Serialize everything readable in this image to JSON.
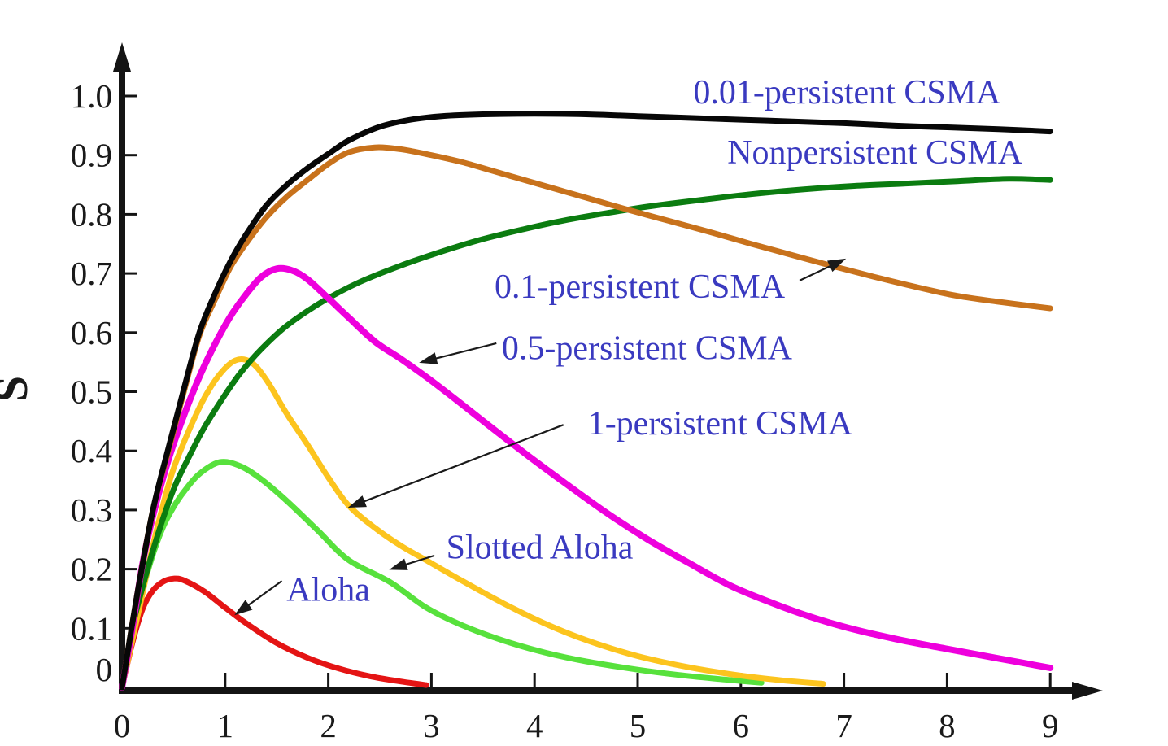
{
  "figure": {
    "ylabel": "S",
    "background": "#ffffff",
    "axis_color": "#141414",
    "tick_label_color": "#1a1a1a",
    "annotation_color": "#3a3ac0"
  },
  "chart_data": {
    "type": "line",
    "title": "",
    "xlabel": "",
    "ylabel": "S",
    "xlim": [
      0,
      9.5
    ],
    "ylim": [
      0,
      1.1
    ],
    "grid": "off",
    "legend": "inline-annotations",
    "x_ticks": [
      {
        "value": 0,
        "label": "0"
      },
      {
        "value": 1,
        "label": "1"
      },
      {
        "value": 2,
        "label": "2"
      },
      {
        "value": 3,
        "label": "3"
      },
      {
        "value": 4,
        "label": "4"
      },
      {
        "value": 5,
        "label": "5"
      },
      {
        "value": 6,
        "label": "6"
      },
      {
        "value": 7,
        "label": "7"
      },
      {
        "value": 8,
        "label": "8"
      },
      {
        "value": 9,
        "label": "9"
      }
    ],
    "y_ticks": [
      {
        "value": 0.0,
        "label": "0"
      },
      {
        "value": 0.1,
        "label": "0.1"
      },
      {
        "value": 0.2,
        "label": "0.2"
      },
      {
        "value": 0.3,
        "label": "0.3"
      },
      {
        "value": 0.4,
        "label": "0.4"
      },
      {
        "value": 0.5,
        "label": "0.5"
      },
      {
        "value": 0.6,
        "label": "0.6"
      },
      {
        "value": 0.7,
        "label": "0.7"
      },
      {
        "value": 0.8,
        "label": "0.8"
      },
      {
        "value": 0.9,
        "label": "0.9"
      },
      {
        "value": 1.0,
        "label": "1.0"
      }
    ],
    "series": [
      {
        "name": "Aloha",
        "slug": "aloha",
        "color": "#e41414",
        "width": 7,
        "points": [
          [
            0,
            0
          ],
          [
            0.1,
            0.075
          ],
          [
            0.2,
            0.133
          ],
          [
            0.3,
            0.164
          ],
          [
            0.4,
            0.179
          ],
          [
            0.5,
            0.184
          ],
          [
            0.6,
            0.181
          ],
          [
            0.8,
            0.162
          ],
          [
            1,
            0.135
          ],
          [
            1.2,
            0.109
          ],
          [
            1.5,
            0.075
          ],
          [
            1.8,
            0.05
          ],
          [
            2.1,
            0.032
          ],
          [
            2.4,
            0.019
          ],
          [
            2.7,
            0.01
          ],
          [
            2.95,
            0.004
          ]
        ]
      },
      {
        "name": "Slotted Aloha",
        "slug": "slotted-aloha",
        "color": "#57e13c",
        "width": 7,
        "points": [
          [
            0,
            0
          ],
          [
            0.1,
            0.09
          ],
          [
            0.2,
            0.165
          ],
          [
            0.3,
            0.225
          ],
          [
            0.4,
            0.272
          ],
          [
            0.5,
            0.305
          ],
          [
            0.6,
            0.331
          ],
          [
            0.75,
            0.361
          ],
          [
            0.95,
            0.381
          ],
          [
            1.15,
            0.374
          ],
          [
            1.35,
            0.352
          ],
          [
            1.6,
            0.315
          ],
          [
            1.9,
            0.265
          ],
          [
            2.2,
            0.215
          ],
          [
            2.6,
            0.178
          ],
          [
            2.95,
            0.135
          ],
          [
            3.3,
            0.105
          ],
          [
            3.7,
            0.079
          ],
          [
            4.1,
            0.059
          ],
          [
            4.5,
            0.044
          ],
          [
            5,
            0.03
          ],
          [
            5.4,
            0.021
          ],
          [
            5.8,
            0.014
          ],
          [
            6.2,
            0.008
          ]
        ]
      },
      {
        "name": "1-persistent CSMA",
        "slug": "1-persistent-csma",
        "color": "#fcc41e",
        "width": 7,
        "points": [
          [
            0,
            0
          ],
          [
            0.1,
            0.08
          ],
          [
            0.2,
            0.16
          ],
          [
            0.3,
            0.24
          ],
          [
            0.4,
            0.31
          ],
          [
            0.5,
            0.37
          ],
          [
            0.65,
            0.435
          ],
          [
            0.8,
            0.49
          ],
          [
            0.95,
            0.53
          ],
          [
            1.1,
            0.553
          ],
          [
            1.25,
            0.55
          ],
          [
            1.4,
            0.52
          ],
          [
            1.6,
            0.462
          ],
          [
            1.8,
            0.41
          ],
          [
            2,
            0.355
          ],
          [
            2.2,
            0.307
          ],
          [
            2.45,
            0.27
          ],
          [
            2.7,
            0.24
          ],
          [
            2.95,
            0.215
          ],
          [
            3.3,
            0.18
          ],
          [
            3.7,
            0.142
          ],
          [
            4.1,
            0.108
          ],
          [
            4.5,
            0.08
          ],
          [
            5,
            0.053
          ],
          [
            5.5,
            0.034
          ],
          [
            6,
            0.02
          ],
          [
            6.4,
            0.012
          ],
          [
            6.8,
            0.006
          ]
        ]
      },
      {
        "name": "Nonpersistent CSMA",
        "slug": "nonpersistent-csma",
        "color": "#0b7c10",
        "width": 7,
        "points": [
          [
            0,
            0
          ],
          [
            0.1,
            0.1
          ],
          [
            0.2,
            0.17
          ],
          [
            0.35,
            0.26
          ],
          [
            0.5,
            0.335
          ],
          [
            0.65,
            0.39
          ],
          [
            0.8,
            0.44
          ],
          [
            1,
            0.495
          ],
          [
            1.15,
            0.532
          ],
          [
            1.35,
            0.572
          ],
          [
            1.6,
            0.612
          ],
          [
            1.95,
            0.653
          ],
          [
            2.3,
            0.685
          ],
          [
            2.7,
            0.713
          ],
          [
            3.1,
            0.737
          ],
          [
            3.5,
            0.758
          ],
          [
            3.9,
            0.775
          ],
          [
            4.3,
            0.79
          ],
          [
            4.7,
            0.802
          ],
          [
            5.1,
            0.813
          ],
          [
            5.6,
            0.824
          ],
          [
            6.1,
            0.834
          ],
          [
            6.6,
            0.842
          ],
          [
            7.1,
            0.848
          ],
          [
            7.6,
            0.852
          ],
          [
            8.1,
            0.856
          ],
          [
            8.6,
            0.86
          ],
          [
            9,
            0.858
          ]
        ]
      },
      {
        "name": "0.5-persistent CSMA",
        "slug": "0-5-persistent-csma",
        "color": "#ee00dd",
        "width": 8,
        "points": [
          [
            0,
            0
          ],
          [
            0.1,
            0.1
          ],
          [
            0.2,
            0.21
          ],
          [
            0.3,
            0.29
          ],
          [
            0.45,
            0.385
          ],
          [
            0.6,
            0.46
          ],
          [
            0.75,
            0.525
          ],
          [
            0.9,
            0.58
          ],
          [
            1.05,
            0.627
          ],
          [
            1.2,
            0.664
          ],
          [
            1.35,
            0.694
          ],
          [
            1.5,
            0.708
          ],
          [
            1.65,
            0.705
          ],
          [
            1.8,
            0.69
          ],
          [
            2,
            0.658
          ],
          [
            2.2,
            0.625
          ],
          [
            2.45,
            0.585
          ],
          [
            2.7,
            0.556
          ],
          [
            2.95,
            0.525
          ],
          [
            3.25,
            0.485
          ],
          [
            3.6,
            0.437
          ],
          [
            3.95,
            0.39
          ],
          [
            4.3,
            0.345
          ],
          [
            4.7,
            0.295
          ],
          [
            5.1,
            0.25
          ],
          [
            5.5,
            0.21
          ],
          [
            5.9,
            0.172
          ],
          [
            6.3,
            0.143
          ],
          [
            6.7,
            0.118
          ],
          [
            7.1,
            0.098
          ],
          [
            7.5,
            0.082
          ],
          [
            8,
            0.065
          ],
          [
            8.5,
            0.049
          ],
          [
            9,
            0.033
          ]
        ]
      },
      {
        "name": "0.1-persistent CSMA",
        "slug": "0-1-persistent-csma",
        "color": "#c8721c",
        "width": 7,
        "points": [
          [
            0,
            0
          ],
          [
            0.15,
            0.16
          ],
          [
            0.3,
            0.3
          ],
          [
            0.45,
            0.4
          ],
          [
            0.6,
            0.5
          ],
          [
            0.75,
            0.595
          ],
          [
            0.9,
            0.655
          ],
          [
            1.05,
            0.71
          ],
          [
            1.2,
            0.75
          ],
          [
            1.4,
            0.795
          ],
          [
            1.6,
            0.83
          ],
          [
            1.8,
            0.858
          ],
          [
            2,
            0.885
          ],
          [
            2.2,
            0.905
          ],
          [
            2.45,
            0.913
          ],
          [
            2.7,
            0.91
          ],
          [
            3,
            0.9
          ],
          [
            3.3,
            0.888
          ],
          [
            3.6,
            0.873
          ],
          [
            3.9,
            0.858
          ],
          [
            4.2,
            0.843
          ],
          [
            4.5,
            0.828
          ],
          [
            4.9,
            0.808
          ],
          [
            5.3,
            0.789
          ],
          [
            5.7,
            0.77
          ],
          [
            6.1,
            0.75
          ],
          [
            6.5,
            0.731
          ],
          [
            6.9,
            0.712
          ],
          [
            7.3,
            0.694
          ],
          [
            7.7,
            0.677
          ],
          [
            8.1,
            0.662
          ],
          [
            8.5,
            0.652
          ],
          [
            9,
            0.641
          ]
        ]
      },
      {
        "name": "0.01-persistent CSMA",
        "slug": "0-01-persistent-csma",
        "color": "#070707",
        "width": 7,
        "points": [
          [
            0,
            0
          ],
          [
            0.15,
            0.16
          ],
          [
            0.3,
            0.3
          ],
          [
            0.45,
            0.405
          ],
          [
            0.6,
            0.505
          ],
          [
            0.75,
            0.6
          ],
          [
            0.9,
            0.665
          ],
          [
            1.05,
            0.72
          ],
          [
            1.2,
            0.765
          ],
          [
            1.4,
            0.815
          ],
          [
            1.6,
            0.85
          ],
          [
            1.8,
            0.878
          ],
          [
            2,
            0.902
          ],
          [
            2.2,
            0.925
          ],
          [
            2.5,
            0.948
          ],
          [
            2.8,
            0.96
          ],
          [
            3.1,
            0.966
          ],
          [
            3.5,
            0.969
          ],
          [
            4,
            0.97
          ],
          [
            4.5,
            0.969
          ],
          [
            5,
            0.966
          ],
          [
            5.5,
            0.963
          ],
          [
            6,
            0.96
          ],
          [
            6.5,
            0.957
          ],
          [
            7,
            0.954
          ],
          [
            7.5,
            0.95
          ],
          [
            8,
            0.947
          ],
          [
            8.5,
            0.944
          ],
          [
            9,
            0.94
          ]
        ]
      }
    ],
    "annotations": [
      {
        "text": "0.01-persistent CSMA",
        "slug": "0-01-persistent-csma",
        "at": [
          7.03,
          1.007
        ]
      },
      {
        "text": "Nonpersistent CSMA",
        "slug": "nonpersistent-csma",
        "at": [
          7.3,
          0.905
        ]
      },
      {
        "text": "0.1-persistent CSMA",
        "slug": "0-1-persistent-csma",
        "at": [
          5.02,
          0.678
        ],
        "arrow": {
          "from": [
            6.57,
            0.688
          ],
          "to": [
            7.02,
            0.725
          ]
        }
      },
      {
        "text": "0.5-persistent CSMA",
        "slug": "0-5-persistent-csma",
        "at": [
          5.09,
          0.574
        ],
        "arrow": {
          "from": [
            3.63,
            0.582
          ],
          "to": [
            2.88,
            0.549
          ]
        }
      },
      {
        "text": "1-persistent CSMA",
        "slug": "1-persistent-csma",
        "at": [
          5.8,
          0.447
        ],
        "arrow": {
          "from": [
            4.28,
            0.444
          ],
          "to": [
            2.19,
            0.304
          ]
        }
      },
      {
        "text": "Slotted Aloha",
        "slug": "slotted-aloha",
        "at": [
          4.05,
          0.237
        ],
        "arrow": {
          "from": [
            3.03,
            0.223
          ],
          "to": [
            2.59,
            0.199
          ]
        }
      },
      {
        "text": "Aloha",
        "slug": "aloha",
        "at": [
          2.0,
          0.166
        ],
        "arrow": {
          "from": [
            1.55,
            0.18
          ],
          "to": [
            1.09,
            0.122
          ]
        }
      }
    ]
  }
}
